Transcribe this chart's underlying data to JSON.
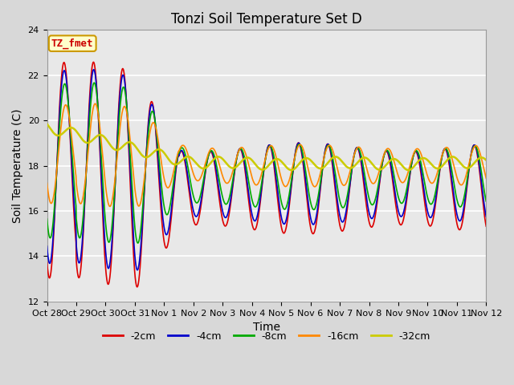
{
  "title": "Tonzi Soil Temperature Set D",
  "xlabel": "Time",
  "ylabel": "Soil Temperature (C)",
  "ylim": [
    12,
    24
  ],
  "yticks": [
    12,
    14,
    16,
    18,
    20,
    22,
    24
  ],
  "xtick_labels": [
    "Oct 28",
    "Oct 29",
    "Oct 30",
    "Oct 31",
    "Nov 1",
    "Nov 2",
    "Nov 3",
    "Nov 4",
    "Nov 5",
    "Nov 6",
    "Nov 7",
    "Nov 8",
    "Nov 9",
    "Nov 10",
    "Nov 11",
    "Nov 12"
  ],
  "legend_entries": [
    "-2cm",
    "-4cm",
    "-8cm",
    "-16cm",
    "-32cm"
  ],
  "line_colors": [
    "#dd0000",
    "#0000cc",
    "#00aa00",
    "#ff8800",
    "#cccc00"
  ],
  "line_widths": [
    1.2,
    1.2,
    1.2,
    1.2,
    1.8
  ],
  "annotation_text": "TZ_fmet",
  "annotation_color": "#cc0000",
  "annotation_bg": "#ffffcc",
  "annotation_border": "#cc9900",
  "bg_color": "#e8e8e8",
  "grid_color": "#ffffff",
  "title_fontsize": 12,
  "axis_label_fontsize": 10,
  "tick_fontsize": 8
}
